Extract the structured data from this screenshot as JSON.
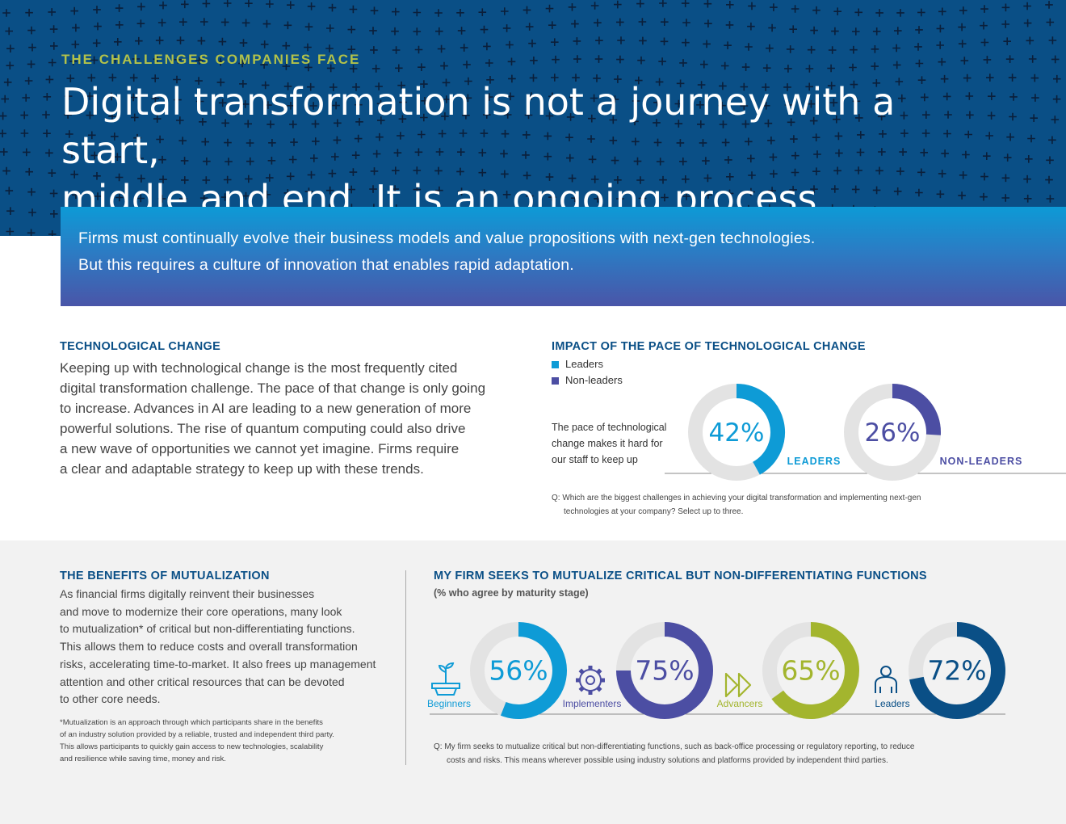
{
  "hero": {
    "eyebrow": "THE CHALLENGES COMPANIES FACE",
    "headline_line1": "Digital transformation is not a journey with a start,",
    "headline_line2": "middle and end. It is an ongoing process."
  },
  "banner": {
    "line1": "Firms must continually evolve their business models and value propositions with next-gen technologies.",
    "line2": "But this requires a culture of innovation that enables rapid adaptation."
  },
  "tech": {
    "title": "TECHNOLOGICAL CHANGE",
    "lines": [
      "Keeping up with technological change is the most frequently cited",
      "digital transformation challenge. The pace of that change is only going",
      "to increase. Advances in AI are leading to a new generation of more",
      "powerful solutions. The rise of quantum computing could also drive",
      "a new wave of opportunities we cannot yet imagine. Firms require",
      "a clear and adaptable strategy to keep up with these trends."
    ]
  },
  "impact": {
    "title": "IMPACT OF THE PACE OF TECHNOLOGICAL CHANGE",
    "legend": [
      "Leaders",
      "Non-leaders"
    ],
    "statement_lines": [
      "The pace of technological",
      "change makes it hard for",
      "our staff to keep up"
    ],
    "question_lines": [
      "Q: Which are the biggest challenges in achieving your digital transformation and implementing next-gen",
      "technologies at your company? Select up to three."
    ]
  },
  "mutual": {
    "title": "THE BENEFITS OF MUTUALIZATION",
    "lines": [
      "As financial firms digitally reinvent their businesses",
      "and move to modernize their core operations, many look",
      "to mutualization* of critical but non-differentiating functions.",
      "This allows them to reduce costs and overall transformation",
      "risks, accelerating time-to-market. It also frees up management",
      "attention and other critical resources that can be devoted",
      "to other core needs."
    ],
    "footnote_lines": [
      "*Mutualization is an approach through which participants share in the benefits",
      "of an industry solution provided by a reliable, trusted and independent third party.",
      "This allows participants to quickly gain access to new technologies, scalability",
      "and resilience while saving time, money and risk."
    ]
  },
  "mutual_chart": {
    "title": "MY FIRM SEEKS TO MUTUALIZE CRITICAL BUT NON-DIFFERENTIATING FUNCTIONS",
    "subtitle": "(% who agree by maturity stage)",
    "question_lines": [
      "Q: My firm seeks to mutualize critical but non-differentiating functions, such as back-office processing or regulatory reporting, to reduce",
      "costs and risks. This means wherever possible using industry solutions and platforms provided by independent third parties."
    ]
  },
  "icons": [
    "plant-icon",
    "gear-icon",
    "fast-forward-icon",
    "person-icon"
  ],
  "chart_data": [
    {
      "type": "pie",
      "title": "IMPACT OF THE PACE OF TECHNOLOGICAL CHANGE",
      "categories": [
        "LEADERS",
        "NON-LEADERS"
      ],
      "values": [
        42,
        26
      ],
      "labels": [
        "42%",
        "26%"
      ],
      "colors": [
        "#0e9bd6",
        "#4c4ea3"
      ]
    },
    {
      "type": "pie",
      "title": "MY FIRM SEEKS TO MUTUALIZE CRITICAL BUT NON-DIFFERENTIATING FUNCTIONS",
      "categories": [
        "Beginners",
        "Implementers",
        "Advancers",
        "Leaders"
      ],
      "values": [
        56,
        75,
        65,
        72
      ],
      "labels": [
        "56%",
        "75%",
        "65%",
        "72%"
      ],
      "colors": [
        "#0e9bd6",
        "#4c4ea3",
        "#a3b52e",
        "#0a4f86"
      ]
    }
  ],
  "colors": {
    "navy": "#0a4f86",
    "cyan": "#0e9bd6",
    "purple": "#4c4ea3",
    "olive": "#a3b52e",
    "track": "#e3e3e3"
  }
}
